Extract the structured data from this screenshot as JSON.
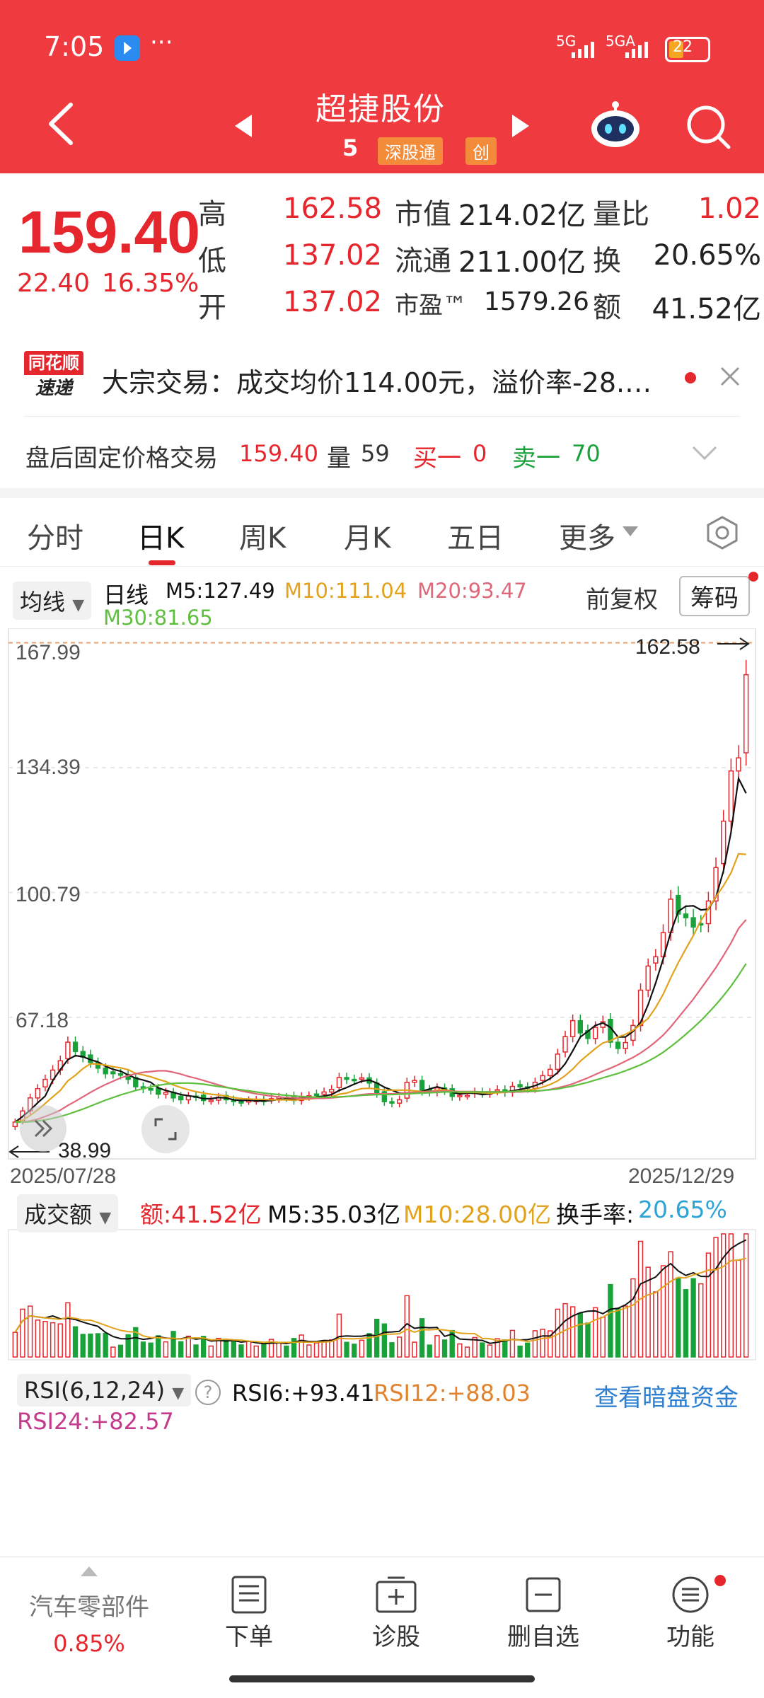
{
  "status_bar": {
    "time": "7:05",
    "dots": "···",
    "net1": "5G",
    "net2": "5GA",
    "battery": "22"
  },
  "header": {
    "title": "超捷股份",
    "code_fragment": "5",
    "tag1": "深股通",
    "tag2": "创"
  },
  "quote": {
    "price": "159.40",
    "change": "22.40",
    "change_pct": "16.35%",
    "rows": [
      {
        "l1": "高",
        "v1": "162.58",
        "l2": "市值",
        "v2": "214.02亿",
        "l3": "量比",
        "v3": "1.02"
      },
      {
        "l1": "低",
        "v1": "137.02",
        "l2": "流通",
        "v2": "211.00亿",
        "l3": "换",
        "v3": "20.65%"
      },
      {
        "l1": "开",
        "v1": "137.02",
        "l2": "市盈™",
        "v2": "1579.26",
        "l3": "额",
        "v3": "41.52亿"
      }
    ]
  },
  "news": {
    "logo_top": "同花顺",
    "logo_bottom": "速递",
    "text": "大宗交易：成交均价114.00元，溢价率-28.…"
  },
  "after_hours": {
    "label": "盘后固定价格交易",
    "price": "159.40",
    "vol_label": "量",
    "vol": "59",
    "buy_label": "买一",
    "buy": "0",
    "sell_label": "卖一",
    "sell": "70"
  },
  "tabs": [
    "分时",
    "日K",
    "周K",
    "月K",
    "五日",
    "更多"
  ],
  "chart_header": {
    "ma_selector": "均线",
    "line_label": "日线",
    "m5": "M5:127.49",
    "m10": "M10:111.04",
    "m20": "M20:93.47",
    "m30": "M30:81.65",
    "adjust": "前复权",
    "chips": "筹码"
  },
  "colors": {
    "up": "#e6262d",
    "down": "#1aa23a",
    "m5": "#111111",
    "m10": "#e2a21b",
    "m20": "#e0667a",
    "m30": "#5fbf3e",
    "header": "#ef3b40",
    "rsi_link": "#2d7fd0"
  },
  "chart_data": {
    "type": "line",
    "title": "",
    "y_ticks": [
      "167.99",
      "134.39",
      "100.79",
      "67.18"
    ],
    "ylim": [
      31.0,
      170.0
    ],
    "x_range": [
      "2025/07/28",
      "2025/12/29"
    ],
    "high_marker": "162.58",
    "low_marker": "38.99",
    "close": [
      38.99,
      42.0,
      45.5,
      48.0,
      50.5,
      53.0,
      55.5,
      60.5,
      58.0,
      56.5,
      55.0,
      53.5,
      52.0,
      52.0,
      51.8,
      50.5,
      48.5,
      48.0,
      47.6,
      46.5,
      47.0,
      45.5,
      45.0,
      46.0,
      45.8,
      44.8,
      44.9,
      45.7,
      45.0,
      44.5,
      44.3,
      44.8,
      44.9,
      44.6,
      45.3,
      45.7,
      45.6,
      44.8,
      45.9,
      46.1,
      46.5,
      47.1,
      47.8,
      51.0,
      50.5,
      50.2,
      50.9,
      49.5,
      46.7,
      44.5,
      44.1,
      45.0,
      49.7,
      50.2,
      47.3,
      47.1,
      48.2,
      47.5,
      45.9,
      46.2,
      46.2,
      47.1,
      46.7,
      46.9,
      47.7,
      47.0,
      48.6,
      48.5,
      48.1,
      49.7,
      51.5,
      53.2,
      57.3,
      62.0,
      66.3,
      63.0,
      61.5,
      64.5,
      66.0,
      60.5,
      58.8,
      60.4,
      65.0,
      74.5,
      81.0,
      83.5,
      90.0,
      99.0,
      95.0,
      94.0,
      91.5,
      92.4,
      98.5,
      107.5,
      120.0,
      133.5,
      137.02,
      159.4
    ],
    "series": [
      {
        "name": "M5",
        "values": [
          38.99,
          40.5,
          42.2,
          44.2,
          46.0,
          50.2,
          53.1,
          55.8,
          56.9,
          56.6,
          55.8,
          55.2,
          54.0,
          53.2,
          52.7,
          51.7,
          50.8,
          50.3,
          49.7,
          48.2,
          47.5,
          47.0,
          46.4,
          46.1,
          45.8,
          45.3,
          45.3,
          45.6,
          45.5,
          45.0,
          44.8,
          44.9,
          44.7,
          44.7,
          44.8,
          45.1,
          45.2,
          45.2,
          45.5,
          45.5,
          45.8,
          46.0,
          46.4,
          47.5,
          48.3,
          49.2,
          50.0,
          50.3,
          49.5,
          48.4,
          47.6,
          46.8,
          46.8,
          47.0,
          47.3,
          47.9,
          48.5,
          47.9,
          47.0,
          46.6,
          46.8,
          46.8,
          46.4,
          46.6,
          47.1,
          47.1,
          47.4,
          47.8,
          48.2,
          48.8,
          49.6,
          50.7,
          52.3,
          54.7,
          58.2,
          61.9,
          63.4,
          65.0,
          65.7,
          64.5,
          61.9,
          61.9,
          63.4,
          65.8,
          70.6,
          76.4,
          82.9,
          90.0,
          95.7,
          97.1,
          97.2,
          96.1,
          96.3,
          99.6,
          106.6,
          117.0,
          131.5,
          127.49
        ]
      },
      {
        "name": "M10",
        "values": [
          38.99,
          39.5,
          40.8,
          42.3,
          44.0,
          45.8,
          47.5,
          50.1,
          51.6,
          53.4,
          54.7,
          54.6,
          54.3,
          53.9,
          53.6,
          53.1,
          52.1,
          51.7,
          51.2,
          50.5,
          49.9,
          49.0,
          48.3,
          47.7,
          47.2,
          46.8,
          46.5,
          46.3,
          46.0,
          45.6,
          45.3,
          45.2,
          45.1,
          45.1,
          45.0,
          45.0,
          45.0,
          44.9,
          45.1,
          45.2,
          45.4,
          45.6,
          45.8,
          46.5,
          46.8,
          47.5,
          48.0,
          48.1,
          47.9,
          47.6,
          47.6,
          47.6,
          47.6,
          47.4,
          47.2,
          47.2,
          47.6,
          47.7,
          47.3,
          47.0,
          47.0,
          47.0,
          46.9,
          46.8,
          46.9,
          47.0,
          47.2,
          47.4,
          47.6,
          47.9,
          48.4,
          49.1,
          50.1,
          51.5,
          53.3,
          55.4,
          57.1,
          58.8,
          60.3,
          60.9,
          61.9,
          62.6,
          63.7,
          65.2,
          66.9,
          69.8,
          73.4,
          77.8,
          81.9,
          85.6,
          89.2,
          93.2,
          96.5,
          99.7,
          102.6,
          106.1,
          111.2,
          111.04
        ]
      },
      {
        "name": "M20",
        "values": [
          38.99,
          39.0,
          39.3,
          39.8,
          40.5,
          41.3,
          42.2,
          43.5,
          44.6,
          45.8,
          47.0,
          48.1,
          49.1,
          50.0,
          50.9,
          51.5,
          52.0,
          52.4,
          52.6,
          52.8,
          52.8,
          52.4,
          51.9,
          51.3,
          50.8,
          50.2,
          49.6,
          49.0,
          48.4,
          47.9,
          47.4,
          47.0,
          46.6,
          46.3,
          46.0,
          45.8,
          45.6,
          45.5,
          45.4,
          45.4,
          45.4,
          45.4,
          45.5,
          45.7,
          45.9,
          46.1,
          46.4,
          46.6,
          46.6,
          46.6,
          46.6,
          46.7,
          46.9,
          47.0,
          47.1,
          47.2,
          47.3,
          47.3,
          47.3,
          47.2,
          47.2,
          47.2,
          47.1,
          47.1,
          47.1,
          47.1,
          47.1,
          47.1,
          47.2,
          47.3,
          47.5,
          47.8,
          48.2,
          48.7,
          49.3,
          50.1,
          50.9,
          51.8,
          52.7,
          53.5,
          54.4,
          55.4,
          56.4,
          57.6,
          59.0,
          60.6,
          62.4,
          64.6,
          67.1,
          69.6,
          72.1,
          74.9,
          77.7,
          80.6,
          83.8,
          87.2,
          91.1,
          93.47
        ]
      },
      {
        "name": "M30",
        "values": [
          38.99,
          38.99,
          39.1,
          39.3,
          39.6,
          40.0,
          40.5,
          41.1,
          41.8,
          42.5,
          43.3,
          44.1,
          44.9,
          45.6,
          46.3,
          46.9,
          47.5,
          48.0,
          48.5,
          48.9,
          49.2,
          49.4,
          49.5,
          49.5,
          49.4,
          49.2,
          48.9,
          48.6,
          48.3,
          48.0,
          47.7,
          47.4,
          47.1,
          46.8,
          46.6,
          46.4,
          46.2,
          46.0,
          45.9,
          45.8,
          45.7,
          45.7,
          45.7,
          45.8,
          45.9,
          46.0,
          46.2,
          46.3,
          46.4,
          46.4,
          46.4,
          46.5,
          46.6,
          46.7,
          46.8,
          46.9,
          47.0,
          47.1,
          47.1,
          47.1,
          47.1,
          47.1,
          47.1,
          47.1,
          47.1,
          47.2,
          47.2,
          47.3,
          47.3,
          47.4,
          47.5,
          47.7,
          47.9,
          48.3,
          48.7,
          49.2,
          49.7,
          50.3,
          50.9,
          51.5,
          52.1,
          52.8,
          53.6,
          54.4,
          55.4,
          56.5,
          57.8,
          59.3,
          60.9,
          62.6,
          64.4,
          66.3,
          68.4,
          70.6,
          73.0,
          75.6,
          78.5,
          81.65
        ]
      }
    ]
  },
  "volume_panel": {
    "selector": "成交额",
    "amount": "额:41.52亿",
    "m5": "M5:35.03亿",
    "m10": "M10:28.00亿",
    "turnover_label": "换手率:",
    "turnover": "20.65%"
  },
  "rsi_panel": {
    "selector": "RSI(6,12,24)",
    "help": "?",
    "rsi6": "RSI6:+93.41",
    "rsi12": "RSI12:+88.03",
    "rsi24": "RSI24:+82.57",
    "link": "查看暗盘资金"
  },
  "bottom_bar": {
    "sector": "汽车零部件",
    "sector_change": "0.85%",
    "order": "下单",
    "diagnose": "诊股",
    "remove": "删自选",
    "functions": "功能"
  }
}
